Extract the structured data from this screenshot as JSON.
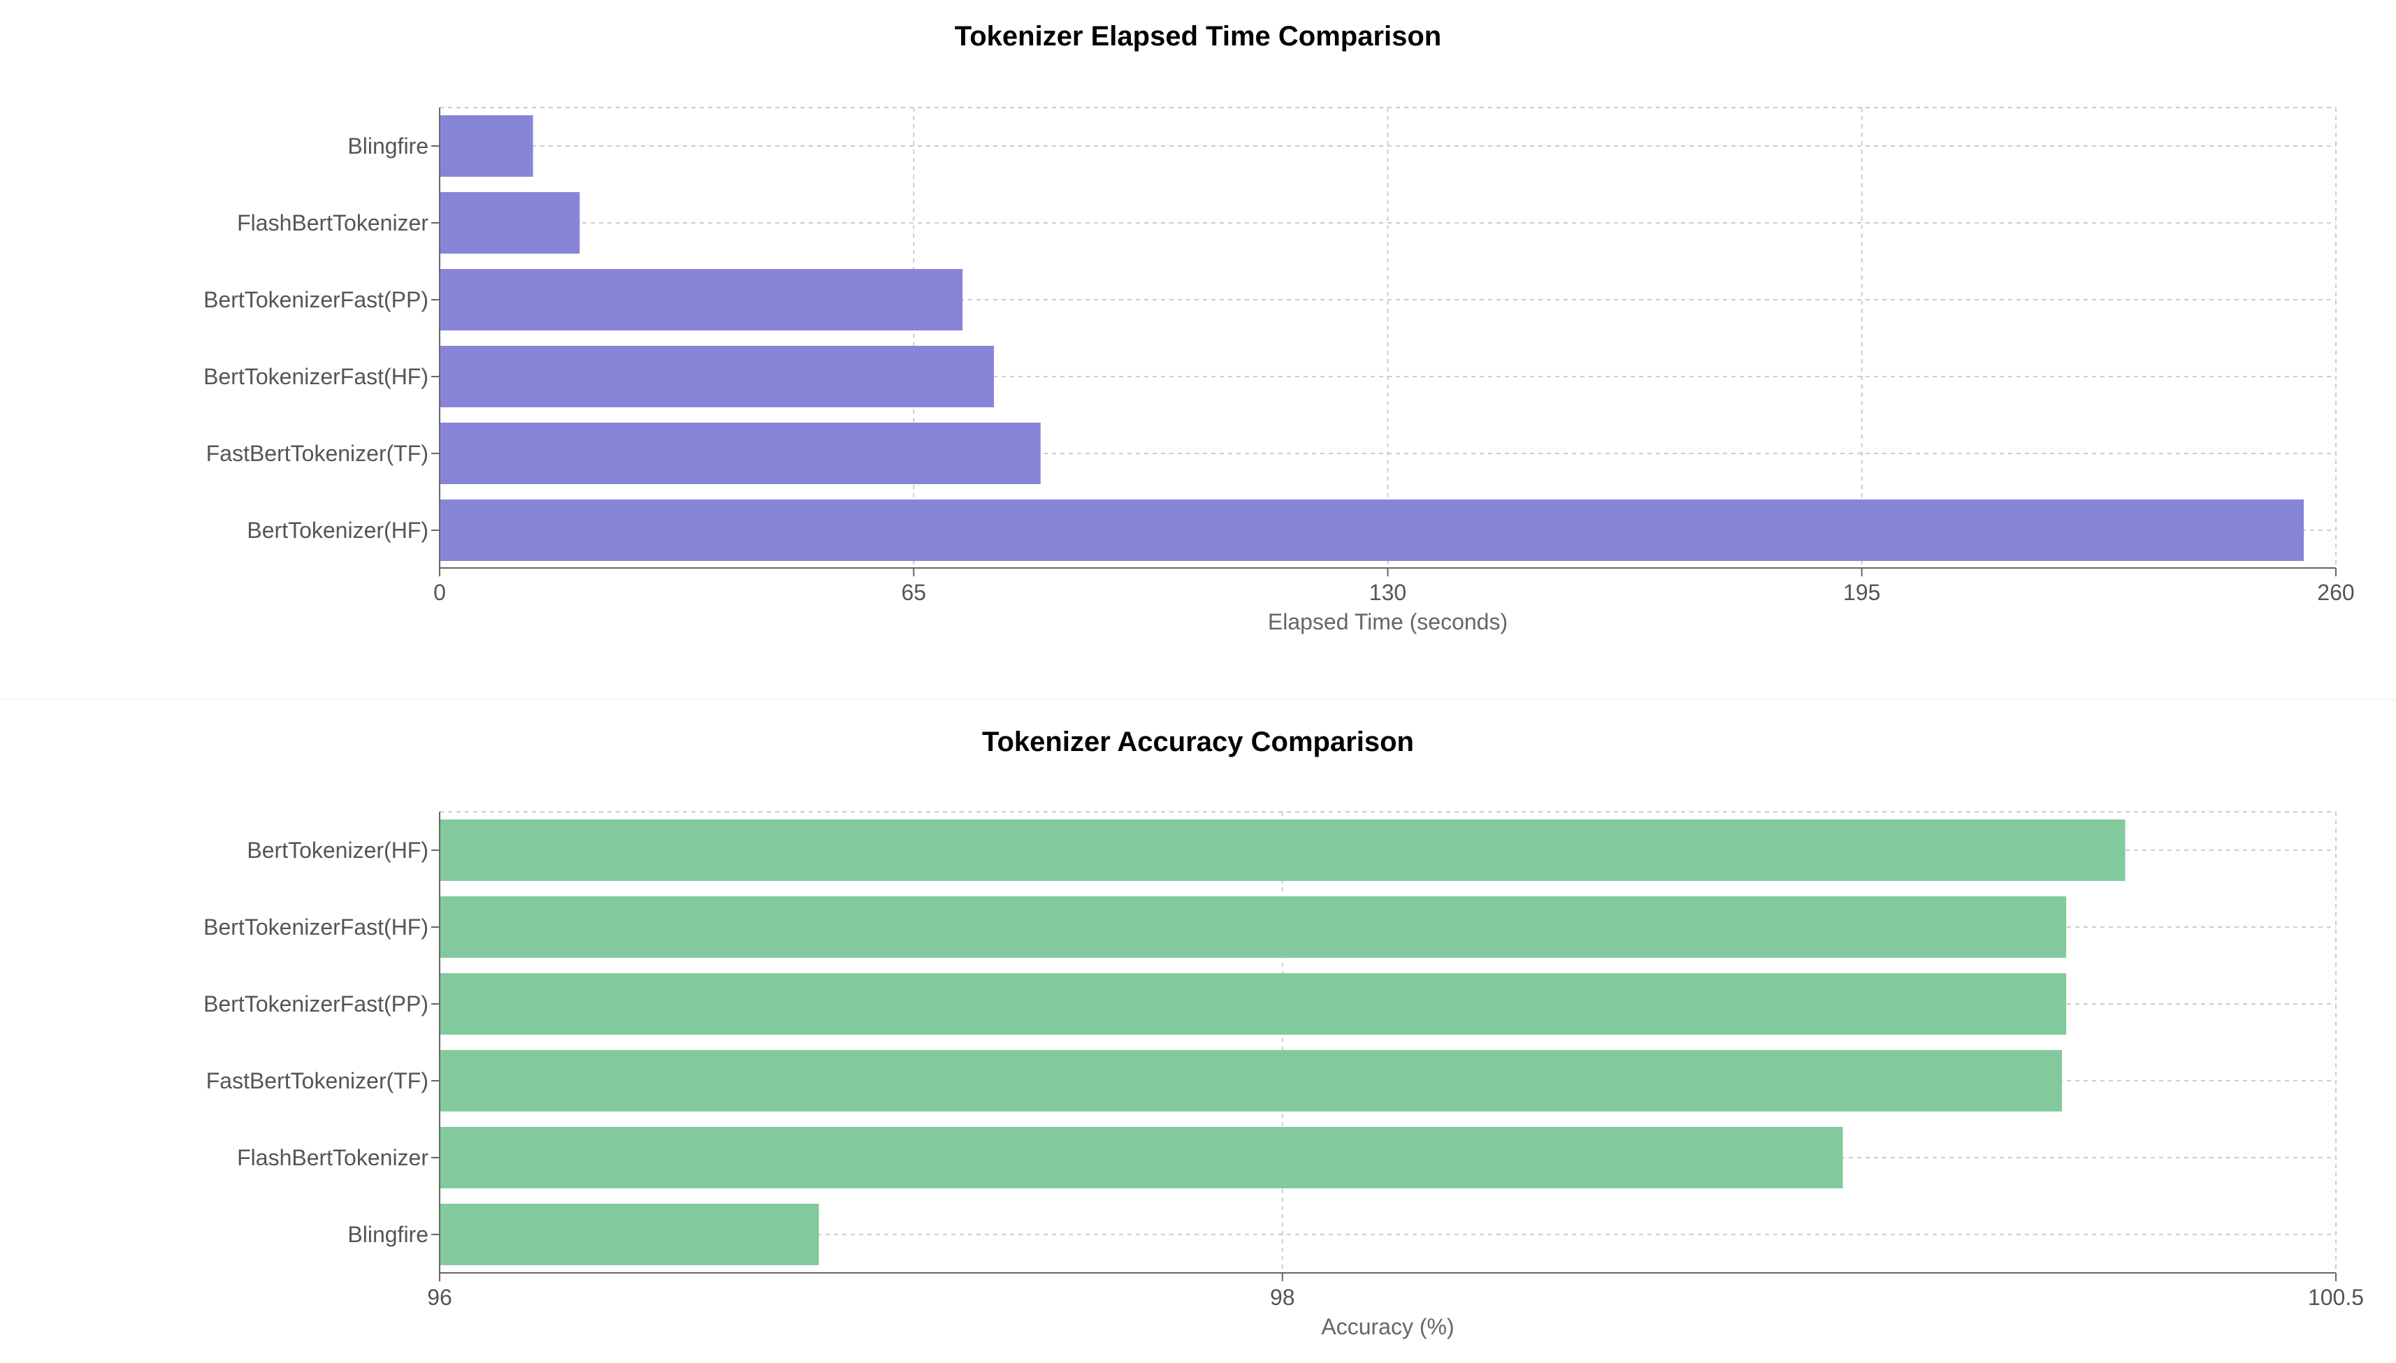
{
  "colors": {
    "time_bar": "#8884d8",
    "accuracy_bar": "#82ca9d"
  },
  "chart_data": [
    {
      "type": "bar",
      "orientation": "horizontal",
      "title": "Tokenizer Elapsed Time Comparison",
      "xlabel": "Elapsed Time (seconds)",
      "ylabel": "",
      "categories": [
        "Blingfire",
        "FlashBertTokenizer",
        "BertTokenizerFast(PP)",
        "BertTokenizerFast(HF)",
        "FastBertTokenizer(TF)",
        "BertTokenizer(HF)"
      ],
      "values": [
        12.8,
        19.2,
        71.7,
        76.0,
        82.4,
        255.6
      ],
      "xlim": [
        0,
        260
      ],
      "xticks": [
        "0",
        "65",
        "130",
        "195",
        "260"
      ],
      "grid": true,
      "color": "#8884d8"
    },
    {
      "type": "bar",
      "orientation": "horizontal",
      "title": "Tokenizer Accuracy Comparison",
      "xlabel": "Accuracy (%)",
      "ylabel": "",
      "categories": [
        "BertTokenizer(HF)",
        "BertTokenizerFast(HF)",
        "BertTokenizerFast(PP)",
        "FastBertTokenizer(TF)",
        "FlashBertTokenizer",
        "Blingfire"
      ],
      "values": [
        100.0,
        99.86,
        99.86,
        99.85,
        99.33,
        96.9
      ],
      "xlim": [
        96,
        100.5
      ],
      "xticks": [
        "96",
        "98",
        "100.5"
      ],
      "grid": true,
      "color": "#82ca9d"
    }
  ]
}
